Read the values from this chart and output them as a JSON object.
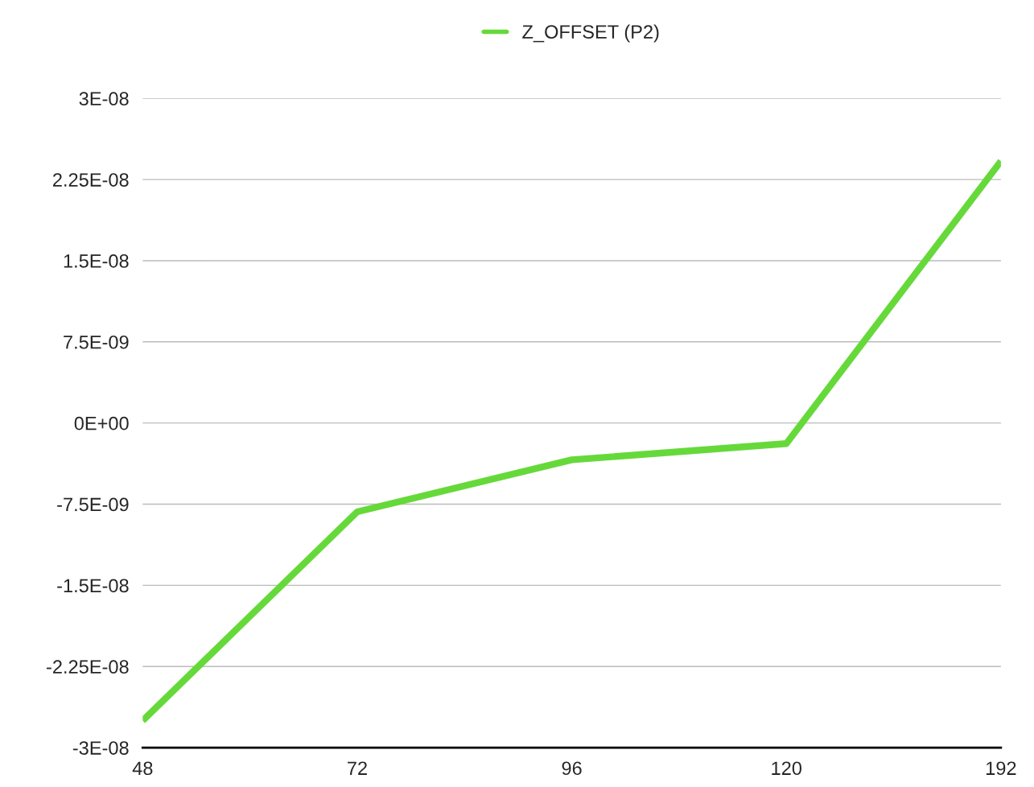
{
  "chart_data": {
    "type": "line",
    "categories": [
      "48",
      "72",
      "96",
      "120",
      "192"
    ],
    "series": [
      {
        "name": "Z_OFFSET (P2)",
        "color": "#66d93a",
        "values": [
          -2.75e-08,
          -8.2e-09,
          -3.4e-09,
          -1.9e-09,
          2.42e-08
        ]
      }
    ],
    "ylim": [
      -3e-08,
      3e-08
    ],
    "yticks": [
      {
        "value": -3e-08,
        "label": "-3E-08"
      },
      {
        "value": -2.25e-08,
        "label": "-2.25E-08"
      },
      {
        "value": -1.5e-08,
        "label": "-1.5E-08"
      },
      {
        "value": -7.5e-09,
        "label": "-7.5E-09"
      },
      {
        "value": 0,
        "label": "0E+00"
      },
      {
        "value": 7.5e-09,
        "label": "7.5E-09"
      },
      {
        "value": 1.5e-08,
        "label": "1.5E-08"
      },
      {
        "value": 2.25e-08,
        "label": "2.25E-08"
      },
      {
        "value": 3e-08,
        "label": "3E-08"
      }
    ],
    "grid": "y",
    "legend": "top",
    "marker": "none",
    "line_style": "solid"
  }
}
